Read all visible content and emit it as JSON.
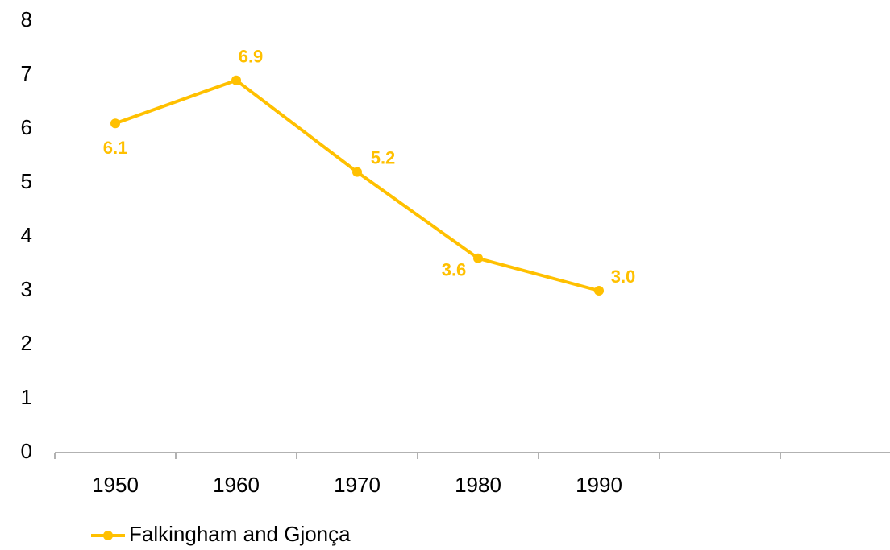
{
  "chart_data": {
    "type": "line",
    "categories": [
      "1950",
      "1960",
      "1970",
      "1980",
      "1990",
      null,
      null
    ],
    "series": [
      {
        "name": "Falkingham and Gjonça",
        "color": "#ffc000",
        "values": [
          6.1,
          6.9,
          5.2,
          3.6,
          3.0,
          null,
          null
        ],
        "value_labels": [
          "6.1",
          "6.9",
          "5.2",
          "3.6",
          "3.0",
          null,
          null
        ]
      }
    ],
    "ylim": [
      0,
      8
    ],
    "yticks": [
      0,
      1,
      2,
      3,
      4,
      5,
      6,
      7,
      8
    ],
    "grid": false,
    "legend": "bottom-left"
  }
}
